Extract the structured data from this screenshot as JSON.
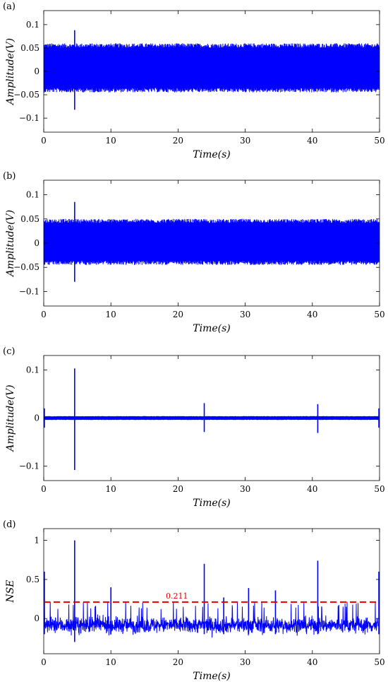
{
  "chart_data": [
    {
      "type": "line",
      "panel_label": "(a)",
      "xlabel": "Time(s)",
      "ylabel": "Amplitude(V)",
      "xlim": [
        0,
        50
      ],
      "ylim": [
        -0.13,
        0.13
      ],
      "x_ticks": [
        0,
        10,
        20,
        30,
        40,
        50
      ],
      "y_ticks": [
        -0.1,
        -0.05,
        0,
        0.05,
        0.1
      ],
      "y_tick_labels": [
        "−0.1",
        "−0.05",
        "0",
        "0.05",
        "0.1"
      ],
      "grid": false,
      "series": [
        {
          "color": "#0000ff",
          "style": "dense-noise",
          "band": [
            -0.045,
            0.06
          ],
          "spikes": [
            {
              "x": 4.6,
              "y_max": 0.088,
              "y_min": -0.082
            }
          ]
        }
      ]
    },
    {
      "type": "line",
      "panel_label": "(b)",
      "xlabel": "Time(s)",
      "ylabel": "Amplitude(V)",
      "xlim": [
        0,
        50
      ],
      "ylim": [
        -0.13,
        0.13
      ],
      "x_ticks": [
        0,
        10,
        20,
        30,
        40,
        50
      ],
      "y_ticks": [
        -0.1,
        -0.05,
        0,
        0.05,
        0.1
      ],
      "y_tick_labels": [
        "−0.1",
        "−0.05",
        "0",
        "0.05",
        "0.1"
      ],
      "grid": false,
      "series": [
        {
          "color": "#0000ff",
          "style": "dense-noise",
          "band": [
            -0.045,
            0.05
          ],
          "spikes": [
            {
              "x": 4.6,
              "y_max": 0.085,
              "y_min": -0.08
            }
          ]
        }
      ]
    },
    {
      "type": "line",
      "panel_label": "(c)",
      "xlabel": "Time(s)",
      "ylabel": "Amplitude(V)",
      "xlim": [
        0,
        50
      ],
      "ylim": [
        -0.13,
        0.13
      ],
      "x_ticks": [
        0,
        10,
        20,
        30,
        40,
        50
      ],
      "y_ticks": [
        -0.1,
        0,
        0.1
      ],
      "y_tick_labels": [
        "−0.1",
        "0",
        "0.1"
      ],
      "grid": false,
      "series": [
        {
          "color": "#0000ff",
          "style": "dense-noise",
          "band": [
            -0.004,
            0.004
          ],
          "spikes": [
            {
              "x": 4.6,
              "y_max": 0.103,
              "y_min": -0.108
            },
            {
              "x": 23.9,
              "y_max": 0.031,
              "y_min": -0.029
            },
            {
              "x": 40.8,
              "y_max": 0.029,
              "y_min": -0.031
            },
            {
              "x": 0.1,
              "y_max": 0.02,
              "y_min": -0.02
            },
            {
              "x": 49.9,
              "y_max": 0.02,
              "y_min": -0.02
            }
          ]
        }
      ]
    },
    {
      "type": "line",
      "panel_label": "(d)",
      "xlabel": "Time(s)",
      "ylabel": "NSE",
      "xlim": [
        0,
        50
      ],
      "ylim": [
        -0.45,
        1.15
      ],
      "x_ticks": [
        0,
        10,
        20,
        30,
        40,
        50
      ],
      "y_ticks": [
        0,
        0.5,
        1
      ],
      "y_tick_labels": [
        "0",
        "0.5",
        "1"
      ],
      "grid": false,
      "threshold": {
        "value": 0.211,
        "label": "0.211",
        "color": "#e00000",
        "style": "dashed"
      },
      "series": [
        {
          "color": "#0000ff",
          "style": "noisy-trace",
          "band": [
            -0.42,
            0.12
          ],
          "spikes": [
            {
              "x": 4.6,
              "y_max": 1.0,
              "y_min": -0.3
            },
            {
              "x": 10.0,
              "y_max": 0.4,
              "y_min": -0.2
            },
            {
              "x": 23.9,
              "y_max": 0.7,
              "y_min": -0.2
            },
            {
              "x": 26.8,
              "y_max": 0.27,
              "y_min": -0.2
            },
            {
              "x": 30.5,
              "y_max": 0.39,
              "y_min": -0.2
            },
            {
              "x": 34.5,
              "y_max": 0.36,
              "y_min": -0.2
            },
            {
              "x": 40.8,
              "y_max": 0.74,
              "y_min": -0.2
            },
            {
              "x": 0.1,
              "y_max": 0.6,
              "y_min": -0.2
            },
            {
              "x": 49.9,
              "y_max": 0.6,
              "y_min": -0.2
            }
          ]
        }
      ]
    }
  ]
}
